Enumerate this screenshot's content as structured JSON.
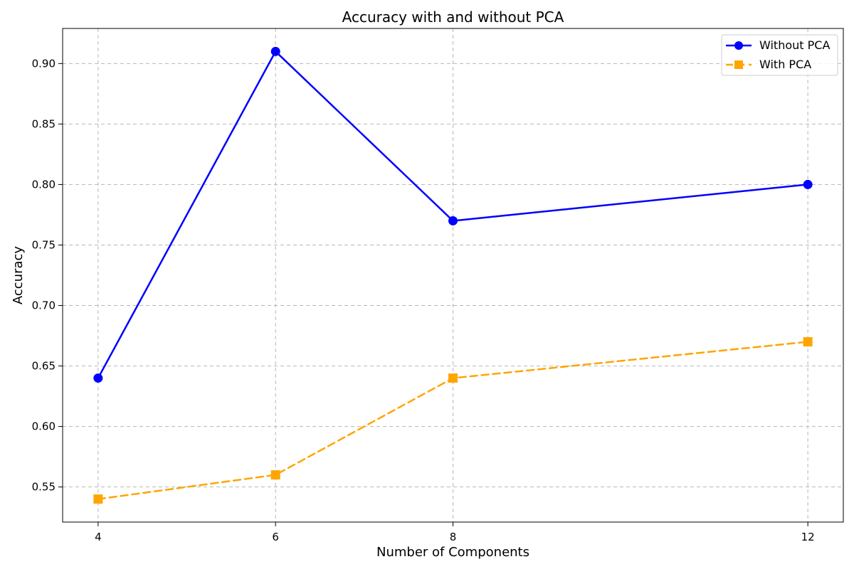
{
  "chart_data": {
    "type": "line",
    "title": "Accuracy with and without PCA",
    "xlabel": "Number of Components",
    "ylabel": "Accuracy",
    "x": [
      4,
      6,
      8,
      12
    ],
    "xticks": [
      "4",
      "6",
      "8",
      "12"
    ],
    "yticks": [
      "0.55",
      "0.60",
      "0.65",
      "0.70",
      "0.75",
      "0.80",
      "0.85",
      "0.90"
    ],
    "xlim": [
      3.6,
      12.4
    ],
    "ylim": [
      0.521,
      0.929
    ],
    "grid": true,
    "legend": {
      "position": "top-right",
      "entries": [
        {
          "label": "Without PCA",
          "color": "#0000ff",
          "marker": "circle",
          "line_style": "solid"
        },
        {
          "label": "With PCA",
          "color": "#ffa500",
          "marker": "square",
          "line_style": "dashed"
        }
      ]
    },
    "series": [
      {
        "name": "Without PCA",
        "values": [
          0.64,
          0.91,
          0.77,
          0.8
        ],
        "color": "#0000ff",
        "marker": "circle",
        "line_style": "solid"
      },
      {
        "name": "With PCA",
        "values": [
          0.54,
          0.56,
          0.64,
          0.67
        ],
        "color": "#ffa500",
        "marker": "square",
        "line_style": "dashed"
      }
    ]
  }
}
